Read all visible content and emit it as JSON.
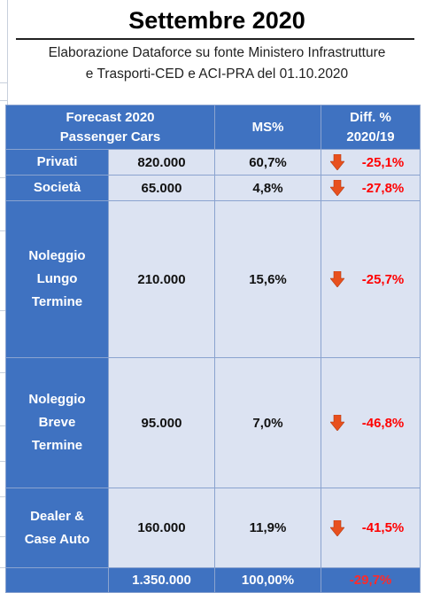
{
  "title": "Settembre 2020",
  "subtitle": {
    "line1": "Elaborazione Dataforce su fonte Ministero Infrastrutture",
    "line2": "e Trasporti-CED e ACI-PRA del 01.10.2020"
  },
  "table": {
    "headers": {
      "col1_line1": "Forecast 2020",
      "col1_line2": "Passenger Cars",
      "ms": "MS%",
      "diff_line1": "Diff. %",
      "diff_line2": "2020/19"
    },
    "rows": [
      {
        "label_lines": [
          "Privati"
        ],
        "value": "820.000",
        "ms": "60,7%",
        "diff": "-25,1%",
        "icon": "down-arrow-icon"
      },
      {
        "label_lines": [
          "Società"
        ],
        "value": "65.000",
        "ms": "4,8%",
        "diff": "-27,8%",
        "icon": "down-arrow-icon"
      },
      {
        "label_lines": [
          "Noleggio",
          "Lungo",
          "Termine"
        ],
        "value": "210.000",
        "ms": "15,6%",
        "diff": "-25,7%",
        "icon": "down-arrow-icon"
      },
      {
        "label_lines": [
          "Noleggio",
          "Breve",
          "Termine"
        ],
        "value": "95.000",
        "ms": "7,0%",
        "diff": "-46,8%",
        "icon": "down-arrow-icon"
      },
      {
        "label_lines": [
          "Dealer &",
          "Case Auto"
        ],
        "value": "160.000",
        "ms": "11,9%",
        "diff": "-41,5%",
        "icon": "down-arrow-icon"
      }
    ],
    "total": {
      "value": "1.350.000",
      "ms": "100,00%",
      "diff": "-29,7%"
    }
  },
  "colors": {
    "header_bg": "#3f72c1",
    "cell_bg": "#dce3f2",
    "negative": "#ff0000",
    "arrow": "#e8501e"
  }
}
